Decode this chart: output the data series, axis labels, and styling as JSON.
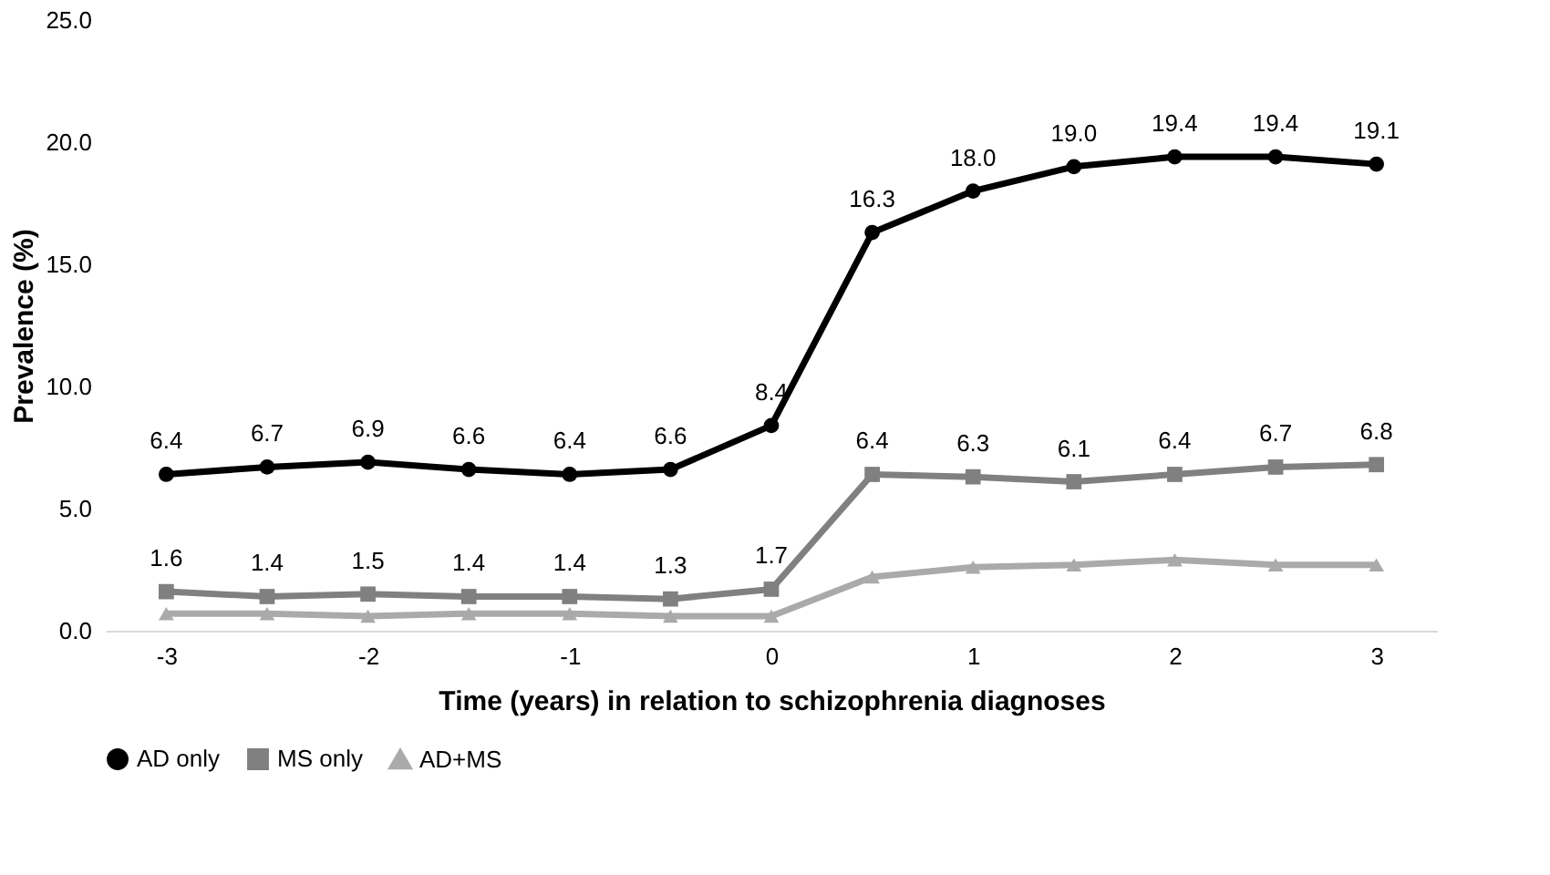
{
  "chart_data": {
    "type": "line",
    "xlabel": "Time (years) in relation to schizophrenia diagnoses",
    "ylabel": "Prevalence (%)",
    "x": [
      -3,
      -2.5,
      -2,
      -1.5,
      -1,
      -0.5,
      0,
      0.5,
      1,
      1.5,
      2,
      2.5,
      3
    ],
    "xlim": [
      -3.3,
      3.3
    ],
    "xticks": [
      -3,
      -2,
      -1,
      0,
      1,
      2,
      3
    ],
    "ylim": [
      0,
      25
    ],
    "yticks": [
      {
        "value": 0,
        "label": "0.0"
      },
      {
        "value": 5,
        "label": "5.0"
      },
      {
        "value": 10,
        "label": "10.0"
      },
      {
        "value": 15,
        "label": "15.0"
      },
      {
        "value": 20,
        "label": "20.0"
      },
      {
        "value": 25,
        "label": "25.0"
      }
    ],
    "grid": false,
    "legend": "bottom",
    "line_style": "solid",
    "series": [
      {
        "name": "AD only",
        "color": "#000000",
        "marker": "circle",
        "values": [
          6.4,
          6.7,
          6.9,
          6.6,
          6.4,
          6.6,
          8.4,
          16.3,
          18.0,
          19.0,
          19.4,
          19.4,
          19.1
        ],
        "value_labels": [
          "6.4",
          "6.7",
          "6.9",
          "6.6",
          "6.4",
          "6.6",
          "8.4",
          "16.3",
          "18.0",
          "19.0",
          "19.4",
          "19.4",
          "19.1"
        ]
      },
      {
        "name": "MS only",
        "color": "#808080",
        "marker": "square",
        "values": [
          1.6,
          1.4,
          1.5,
          1.4,
          1.4,
          1.3,
          1.7,
          6.4,
          6.3,
          6.1,
          6.4,
          6.7,
          6.8
        ],
        "value_labels": [
          "1.6",
          "1.4",
          "1.5",
          "1.4",
          "1.4",
          "1.3",
          "1.7",
          "6.4",
          "6.3",
          "6.1",
          "6.4",
          "6.7",
          "6.8"
        ]
      },
      {
        "name": "AD+MS",
        "color": "#aaaaaa",
        "marker": "triangle",
        "values": [
          0.7,
          0.7,
          0.6,
          0.7,
          0.7,
          0.6,
          0.6,
          2.2,
          2.6,
          2.7,
          2.9,
          2.7,
          2.7
        ]
      }
    ]
  }
}
